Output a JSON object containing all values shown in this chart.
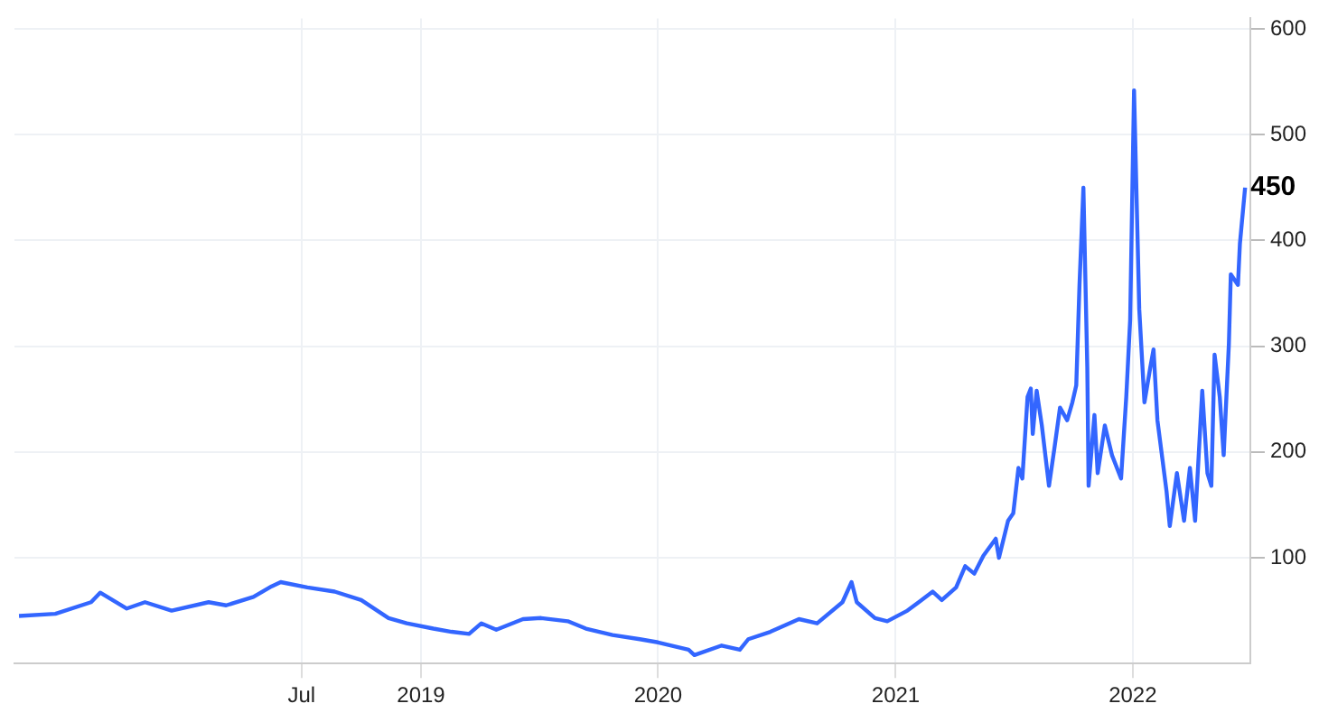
{
  "chart_data": {
    "type": "line",
    "x": [
      "2017-04-22",
      "2017-06-17",
      "2017-08-11",
      "2017-08-25",
      "2017-10-05",
      "2017-11-02",
      "2017-12-13",
      "2018-02-08",
      "2018-03-07",
      "2018-04-18",
      "2018-05-16",
      "2018-05-30",
      "2018-07-10",
      "2018-08-21",
      "2018-10-01",
      "2018-11-12",
      "2018-12-10",
      "2019-01-20",
      "2019-02-17",
      "2019-03-16",
      "2019-04-04",
      "2019-04-27",
      "2019-06-07",
      "2019-07-05",
      "2019-08-15",
      "2019-09-12",
      "2019-10-23",
      "2019-12-04",
      "2020-01-01",
      "2020-02-17",
      "2020-02-26",
      "2020-04-08",
      "2020-05-06",
      "2020-05-19",
      "2020-06-22",
      "2020-08-05",
      "2020-09-02",
      "2020-10-11",
      "2020-10-25",
      "2020-11-02",
      "2020-11-30",
      "2020-12-19",
      "2021-01-19",
      "2021-02-27",
      "2021-03-13",
      "2021-04-04",
      "2021-04-18",
      "2021-05-02",
      "2021-05-16",
      "2021-06-04",
      "2021-06-09",
      "2021-06-23",
      "2021-07-01",
      "2021-07-09",
      "2021-07-15",
      "2021-07-23",
      "2021-07-28",
      "2021-07-31",
      "2021-08-06",
      "2021-08-14",
      "2021-08-25",
      "2021-09-02",
      "2021-09-11",
      "2021-09-22",
      "2021-09-30",
      "2021-10-06",
      "2021-10-11",
      "2021-10-17",
      "2021-10-23",
      "2021-10-25",
      "2021-11-03",
      "2021-11-08",
      "2021-11-19",
      "2021-11-30",
      "2021-12-14",
      "2021-12-22",
      "2021-12-28",
      "2022-01-03",
      "2022-01-11",
      "2022-01-19",
      "2022-01-28",
      "2022-02-02",
      "2022-02-08",
      "2022-02-22",
      "2022-02-27",
      "2022-03-10",
      "2022-03-21",
      "2022-03-30",
      "2022-04-07",
      "2022-04-18",
      "2022-04-26",
      "2022-05-02",
      "2022-05-07",
      "2022-05-15",
      "2022-05-21",
      "2022-05-29",
      "2022-06-01",
      "2022-06-12",
      "2022-06-15",
      "2022-06-23"
    ],
    "series": [
      {
        "color": "#3366ff",
        "values": [
          45,
          47,
          58,
          67,
          52,
          58,
          50,
          58,
          55,
          63,
          73,
          77,
          72,
          68,
          60,
          43,
          38,
          33,
          30,
          28,
          38,
          32,
          42,
          43,
          40,
          33,
          27,
          23,
          20,
          13,
          8,
          17,
          13,
          23,
          30,
          42,
          38,
          58,
          77,
          58,
          43,
          40,
          50,
          68,
          60,
          72,
          92,
          85,
          102,
          118,
          100,
          135,
          142,
          185,
          175,
          252,
          260,
          217,
          258,
          225,
          168,
          202,
          242,
          230,
          247,
          263,
          358,
          450,
          280,
          168,
          235,
          180,
          225,
          197,
          175,
          252,
          325,
          542,
          335,
          247,
          280,
          297,
          230,
          163,
          130,
          180,
          135,
          185,
          135,
          258,
          180,
          168,
          292,
          252,
          197,
          302,
          368,
          358,
          397,
          450
        ]
      }
    ],
    "xlim": [
      "2017-04-15",
      "2022-07-01"
    ],
    "xticks": [
      {
        "value": "2018-07-01",
        "label": "Jul"
      },
      {
        "value": "2019-01-01",
        "label": "2019"
      },
      {
        "value": "2020-01-01",
        "label": "2020"
      },
      {
        "value": "2021-01-01",
        "label": "2021"
      },
      {
        "value": "2022-01-01",
        "label": "2022"
      }
    ],
    "ylim": [
      0,
      610
    ],
    "yticks": [
      100,
      200,
      300,
      400,
      500,
      600
    ],
    "grid": true,
    "marker": "none",
    "line_style": "solid",
    "annotations": [
      {
        "text": "450",
        "x": "2022-06-23",
        "y": 450
      }
    ]
  }
}
